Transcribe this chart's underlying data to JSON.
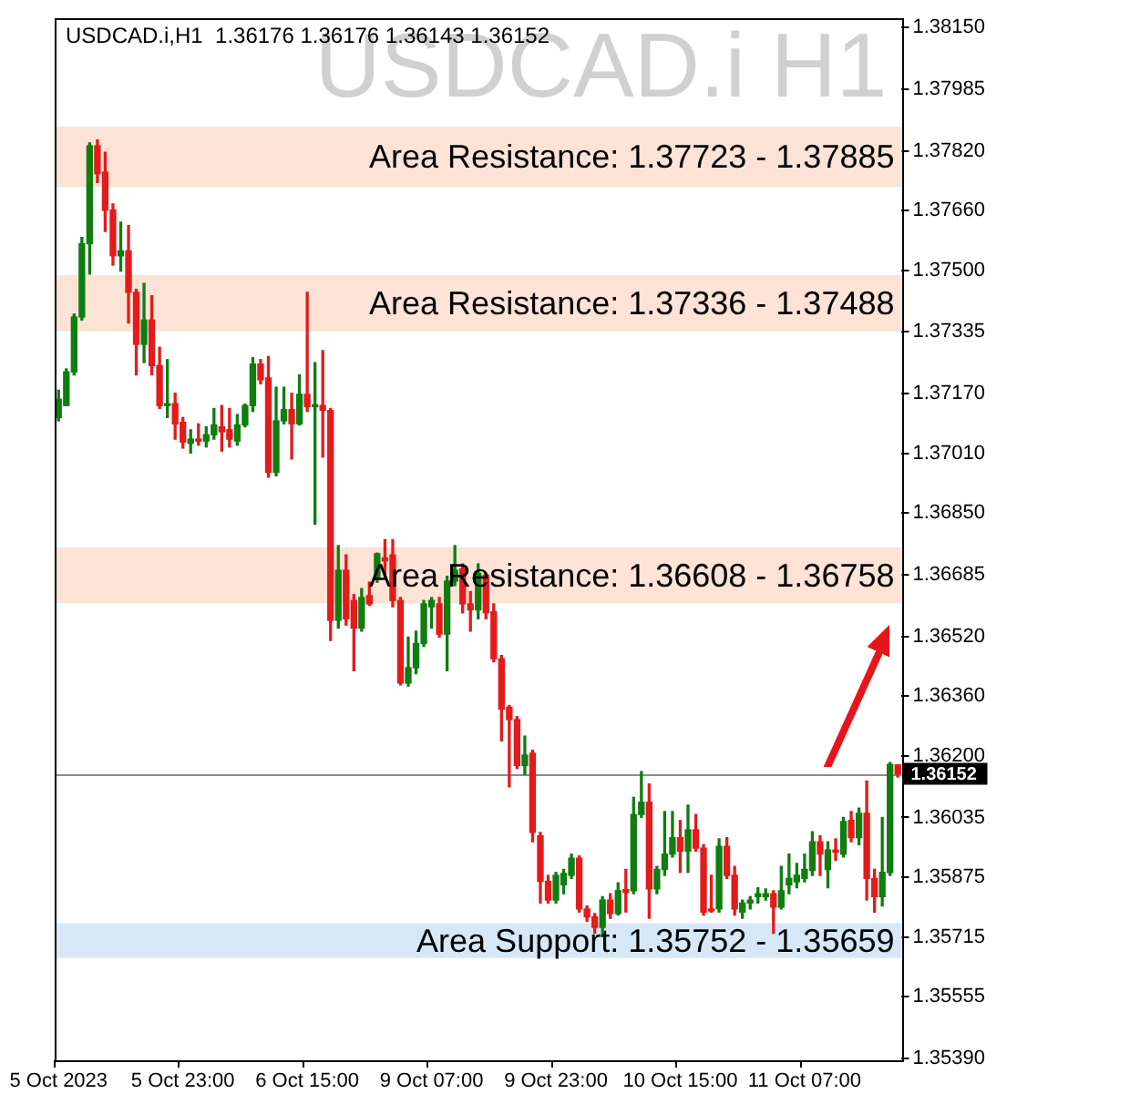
{
  "chart_data": {
    "type": "candlestick",
    "title": "USDCAD.i H1",
    "annotations": [
      "USDCAD.i,H1  1.36176 1.36176 1.36143 1.36152"
    ],
    "categories": [
      "5 Oct 2023",
      null,
      null,
      null,
      null,
      null,
      null,
      null,
      null,
      null,
      null,
      null,
      null,
      null,
      null,
      null,
      "5 Oct 23:00",
      null,
      null,
      null,
      null,
      null,
      null,
      null,
      null,
      null,
      null,
      null,
      null,
      null,
      null,
      null,
      "6 Oct 15:00",
      null,
      null,
      null,
      null,
      null,
      null,
      null,
      null,
      null,
      null,
      null,
      null,
      null,
      null,
      null,
      "9 Oct 07:00",
      null,
      null,
      null,
      null,
      null,
      null,
      null,
      null,
      null,
      null,
      null,
      null,
      null,
      null,
      null,
      "9 Oct 23:00",
      null,
      null,
      null,
      null,
      null,
      null,
      null,
      null,
      null,
      null,
      null,
      null,
      null,
      null,
      null,
      "10 Oct 15:00",
      null,
      null,
      null,
      null,
      null,
      null,
      null,
      null,
      null,
      null,
      null,
      null,
      null,
      null,
      null,
      "11 Oct 07:00",
      null,
      null,
      null,
      null,
      null,
      null,
      null,
      null,
      null,
      null,
      null,
      null
    ],
    "ohlc": [
      [
        1.37106,
        1.37179,
        1.37097,
        1.37155
      ],
      [
        1.37138,
        1.37236,
        1.37138,
        1.37228
      ],
      [
        1.37228,
        1.37383,
        1.3722,
        1.37375
      ],
      [
        1.37375,
        1.37588,
        1.37367,
        1.37571
      ],
      [
        1.37571,
        1.37841,
        1.3749,
        1.37833
      ],
      [
        1.37833,
        1.37849,
        1.37735,
        1.37759
      ],
      [
        1.37763,
        1.37816,
        1.37604,
        1.37661
      ],
      [
        1.37661,
        1.37678,
        1.37514,
        1.37539
      ],
      [
        1.37539,
        1.37629,
        1.37498,
        1.37552
      ],
      [
        1.37552,
        1.3762,
        1.37359,
        1.37441
      ],
      [
        1.37441,
        1.37449,
        1.3722,
        1.37302
      ],
      [
        1.37302,
        1.37465,
        1.37253,
        1.37367
      ],
      [
        1.37367,
        1.37432,
        1.3722,
        1.37245
      ],
      [
        1.37245,
        1.37294,
        1.3713,
        1.37138
      ],
      [
        1.37138,
        1.37261,
        1.37106,
        1.37143
      ],
      [
        1.37143,
        1.37171,
        1.37048,
        1.37089
      ],
      [
        1.37093,
        1.37106,
        1.37024,
        1.3704
      ],
      [
        1.37037,
        1.37073,
        1.37011,
        1.37048
      ],
      [
        1.37048,
        1.37089,
        1.37032,
        1.37043
      ],
      [
        1.37043,
        1.37081,
        1.37027,
        1.3706
      ],
      [
        1.3706,
        1.3713,
        1.37048,
        1.37086
      ],
      [
        1.37081,
        1.37138,
        1.37016,
        1.37068
      ],
      [
        1.37073,
        1.3713,
        1.37027,
        1.37048
      ],
      [
        1.37043,
        1.37114,
        1.37032,
        1.37086
      ],
      [
        1.37086,
        1.37142,
        1.37081,
        1.37138
      ],
      [
        1.37138,
        1.37266,
        1.37122,
        1.37249
      ],
      [
        1.37249,
        1.37261,
        1.37196,
        1.37207
      ],
      [
        1.37212,
        1.37269,
        1.36946,
        1.36959
      ],
      [
        1.36959,
        1.37187,
        1.3695,
        1.37097
      ],
      [
        1.37097,
        1.37187,
        1.37089,
        1.37127
      ],
      [
        1.37127,
        1.37171,
        1.36995,
        1.37089
      ],
      [
        1.37089,
        1.3722,
        1.37086,
        1.37168
      ],
      [
        1.37168,
        1.37441,
        1.37122,
        1.37135
      ],
      [
        1.37135,
        1.37253,
        1.3682,
        1.37138
      ],
      [
        1.37138,
        1.37285,
        1.37,
        1.37125
      ],
      [
        1.37125,
        1.3713,
        1.36509,
        1.36563
      ],
      [
        1.36563,
        1.36763,
        1.36542,
        1.36697
      ],
      [
        1.36697,
        1.36738,
        1.3655,
        1.36567
      ],
      [
        1.36616,
        1.36632,
        1.36428,
        1.36542
      ],
      [
        1.36542,
        1.36648,
        1.36534,
        1.36624
      ],
      [
        1.36629,
        1.36665,
        1.36603,
        1.36607
      ],
      [
        1.36673,
        1.36743,
        1.36665,
        1.36741
      ],
      [
        1.3673,
        1.36779,
        1.36681,
        1.36722
      ],
      [
        1.36738,
        1.36779,
        1.36599,
        1.36616
      ],
      [
        1.36616,
        1.36624,
        1.3639,
        1.36395
      ],
      [
        1.36395,
        1.36518,
        1.36387,
        1.36436
      ],
      [
        1.36436,
        1.36534,
        1.3642,
        1.36501
      ],
      [
        1.36501,
        1.36616,
        1.36493,
        1.36607
      ],
      [
        1.36599,
        1.36624,
        1.36542,
        1.36616
      ],
      [
        1.36607,
        1.36624,
        1.36518,
        1.36526
      ],
      [
        1.36526,
        1.36681,
        1.36428,
        1.36668
      ],
      [
        1.36668,
        1.36763,
        1.36656,
        1.36697
      ],
      [
        1.36701,
        1.36714,
        1.36583,
        1.36607
      ],
      [
        1.36607,
        1.3664,
        1.36534,
        1.36591
      ],
      [
        1.36591,
        1.36714,
        1.36567,
        1.36689
      ],
      [
        1.36684,
        1.36689,
        1.36567,
        1.36583
      ],
      [
        1.36586,
        1.36607,
        1.36452,
        1.3646
      ],
      [
        1.3646,
        1.36469,
        1.3624,
        1.36325
      ],
      [
        1.3633,
        1.36335,
        1.36117,
        1.36297
      ],
      [
        1.36297,
        1.36305,
        1.36166,
        1.36174
      ],
      [
        1.36174,
        1.36253,
        1.3615,
        1.36202
      ],
      [
        1.36207,
        1.36215,
        1.3597,
        1.35995
      ],
      [
        1.35986,
        1.35995,
        1.35806,
        1.35864
      ],
      [
        1.35864,
        1.3588,
        1.35806,
        1.35814
      ],
      [
        1.35814,
        1.35888,
        1.35806,
        1.3588
      ],
      [
        1.35855,
        1.35896,
        1.35831,
        1.35885
      ],
      [
        1.3588,
        1.35937,
        1.35872,
        1.35926
      ],
      [
        1.35926,
        1.35932,
        1.35782,
        1.3579
      ],
      [
        1.3579,
        1.35798,
        1.35757,
        1.35769
      ],
      [
        1.35769,
        1.35778,
        1.35725,
        1.35741
      ],
      [
        1.35741,
        1.35823,
        1.35716,
        1.35814
      ],
      [
        1.35814,
        1.35831,
        1.35765,
        1.35778
      ],
      [
        1.35778,
        1.3586,
        1.35774,
        1.35839
      ],
      [
        1.35842,
        1.35896,
        1.35782,
        1.35834
      ],
      [
        1.35839,
        1.36089,
        1.35831,
        1.36043
      ],
      [
        1.36043,
        1.36158,
        1.36035,
        1.36076
      ],
      [
        1.36076,
        1.36125,
        1.35765,
        1.35844
      ],
      [
        1.35844,
        1.35904,
        1.35831,
        1.35896
      ],
      [
        1.35896,
        1.36051,
        1.3588,
        1.35937
      ],
      [
        1.35937,
        1.36051,
        1.35929,
        1.35981
      ],
      [
        1.35981,
        1.36027,
        1.35888,
        1.35945
      ],
      [
        1.35945,
        1.36068,
        1.35888,
        1.36002
      ],
      [
        1.36002,
        1.36043,
        1.35945,
        1.35953
      ],
      [
        1.35953,
        1.35962,
        1.35774,
        1.35782
      ],
      [
        1.3579,
        1.3588,
        1.35782,
        1.35785
      ],
      [
        1.3579,
        1.35978,
        1.35782,
        1.35958
      ],
      [
        1.35958,
        1.35981,
        1.35872,
        1.3588
      ],
      [
        1.3588,
        1.35904,
        1.35774,
        1.3579
      ],
      [
        1.35782,
        1.35814,
        1.35765,
        1.35806
      ],
      [
        1.35806,
        1.35823,
        1.3579,
        1.35814
      ],
      [
        1.35823,
        1.35847,
        1.35806,
        1.35831
      ],
      [
        1.35823,
        1.35844,
        1.35814,
        1.35831
      ],
      [
        1.35831,
        1.35839,
        1.35725,
        1.35795
      ],
      [
        1.35795,
        1.35904,
        1.3579,
        1.35839
      ],
      [
        1.35855,
        1.35937,
        1.35831,
        1.35872
      ],
      [
        1.35863,
        1.35912,
        1.35847,
        1.3588
      ],
      [
        1.35872,
        1.35937,
        1.35863,
        1.35896
      ],
      [
        1.35893,
        1.35997,
        1.3588,
        1.3597
      ],
      [
        1.3597,
        1.35986,
        1.3588,
        1.35937
      ],
      [
        1.35896,
        1.3597,
        1.35847,
        1.35948
      ],
      [
        1.35948,
        1.35978,
        1.35921,
        1.35942
      ],
      [
        1.35937,
        1.36035,
        1.35929,
        1.36024
      ],
      [
        1.36027,
        1.36051,
        1.3597,
        1.35981
      ],
      [
        1.35981,
        1.3606,
        1.35962,
        1.36046
      ],
      [
        1.36046,
        1.36133,
        1.35814,
        1.35872
      ],
      [
        1.35872,
        1.35896,
        1.35782,
        1.35823
      ],
      [
        1.35823,
        1.36035,
        1.35798,
        1.35888
      ],
      [
        1.35888,
        1.36182,
        1.3588,
        1.36177
      ],
      [
        1.36176,
        1.36176,
        1.36143,
        1.36152
      ]
    ],
    "colors": [
      "#0f7d0f",
      "#0f7d0f",
      "#0f7d0f",
      "#0f7d0f",
      "#0f7d0f",
      "#e31b1b",
      "#e31b1b",
      "#e31b1b",
      "#0f7d0f",
      "#e31b1b",
      "#e31b1b",
      "#0f7d0f",
      "#e31b1b",
      "#e31b1b",
      "#0f7d0f",
      "#e31b1b",
      "#e31b1b",
      "#0f7d0f",
      "#e31b1b",
      "#0f7d0f",
      "#0f7d0f",
      "#e31b1b",
      "#e31b1b",
      "#0f7d0f",
      "#0f7d0f",
      "#0f7d0f",
      "#e31b1b",
      "#e31b1b",
      "#0f7d0f",
      "#0f7d0f",
      "#e31b1b",
      "#0f7d0f",
      "#e31b1b",
      "#0f7d0f",
      "#e31b1b",
      "#e31b1b",
      "#0f7d0f",
      "#e31b1b",
      "#e31b1b",
      "#0f7d0f",
      "#e31b1b",
      "#0f7d0f",
      "#e31b1b",
      "#e31b1b",
      "#e31b1b",
      "#0f7d0f",
      "#0f7d0f",
      "#0f7d0f",
      "#0f7d0f",
      "#e31b1b",
      "#0f7d0f",
      "#0f7d0f",
      "#e31b1b",
      "#e31b1b",
      "#0f7d0f",
      "#e31b1b",
      "#e31b1b",
      "#e31b1b",
      "#e31b1b",
      "#e31b1b",
      "#0f7d0f",
      "#e31b1b",
      "#e31b1b",
      "#e31b1b",
      "#0f7d0f",
      "#0f7d0f",
      "#0f7d0f",
      "#e31b1b",
      "#e31b1b",
      "#e31b1b",
      "#0f7d0f",
      "#e31b1b",
      "#0f7d0f",
      "#e31b1b",
      "#0f7d0f",
      "#0f7d0f",
      "#e31b1b",
      "#0f7d0f",
      "#0f7d0f",
      "#0f7d0f",
      "#e31b1b",
      "#0f7d0f",
      "#e31b1b",
      "#e31b1b",
      "#e31b1b",
      "#0f7d0f",
      "#e31b1b",
      "#e31b1b",
      "#0f7d0f",
      "#0f7d0f",
      "#0f7d0f",
      "#0f7d0f",
      "#e31b1b",
      "#0f7d0f",
      "#0f7d0f",
      "#0f7d0f",
      "#0f7d0f",
      "#0f7d0f",
      "#e31b1b",
      "#0f7d0f",
      "#e31b1b",
      "#0f7d0f",
      "#e31b1b",
      "#0f7d0f",
      "#e31b1b",
      "#e31b1b",
      "#0f7d0f",
      "#0f7d0f",
      "#e31b1b"
    ],
    "ylim": [
      1.35385,
      1.38175
    ],
    "yticks": [
      {
        "value": 1.3815,
        "label": "1.38150"
      },
      1.37985,
      {
        "value": 1.3782,
        "label": "1.37820"
      },
      {
        "value": 1.3766,
        "label": "1.37660"
      },
      {
        "value": 1.375,
        "label": "1.37500"
      },
      1.37335,
      {
        "value": 1.3717,
        "label": "1.37170"
      },
      {
        "value": 1.3701,
        "label": "1.37010"
      },
      {
        "value": 1.3685,
        "label": "1.36850"
      },
      1.36685,
      {
        "value": 1.3652,
        "label": "1.36520"
      },
      {
        "value": 1.3636,
        "label": "1.36360"
      },
      {
        "value": 1.362,
        "label": "1.36200"
      },
      1.36035,
      1.35875,
      1.35715,
      1.35555,
      {
        "value": 1.3539,
        "label": "1.35390"
      }
    ],
    "bands": [
      {
        "axis": "y",
        "from": 1.37723,
        "to": 1.37885,
        "label": "Area Resistance: 1.37723 - 1.37885",
        "color": "#fce3d6"
      },
      {
        "axis": "y",
        "from": 1.37336,
        "to": 1.37488,
        "label": "Area Resistance: 1.37336 - 1.37488",
        "color": "#fce3d6"
      },
      {
        "axis": "y",
        "from": 1.36608,
        "to": 1.36758,
        "label": "Area Resistance: 1.36608 - 1.36758",
        "color": "#fce3d6"
      },
      {
        "axis": "y",
        "from": 1.35659,
        "to": 1.35752,
        "label": "Area Support: 1.35752 - 1.35659",
        "color": "#d6e8f8"
      }
    ],
    "ref_lines": [
      {
        "axis": "y",
        "value": 1.36152,
        "label": "1.36152",
        "color": "#8c8c8c"
      }
    ]
  }
}
